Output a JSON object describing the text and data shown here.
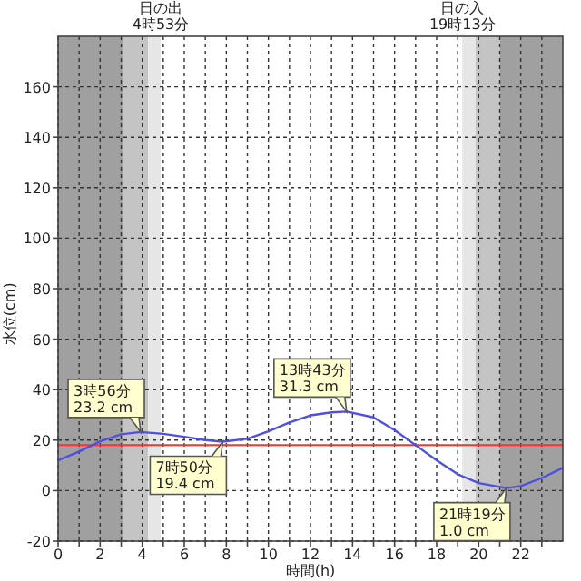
{
  "chart_data": {
    "type": "line",
    "xlabel": "時間(h)",
    "ylabel": "水位(cm)",
    "x": [
      0,
      1,
      2,
      3,
      3.93,
      5,
      6,
      7,
      7.83,
      9,
      10,
      11,
      12,
      13,
      13.72,
      15,
      16,
      17,
      18,
      19,
      20,
      21.32,
      22,
      23,
      24
    ],
    "series": [
      {
        "color": "#5050e0",
        "values": [
          12,
          15.5,
          19.5,
          22.3,
          23.2,
          22.5,
          21.3,
          20,
          19.4,
          20.5,
          23.5,
          27,
          29.8,
          31,
          31.3,
          29,
          24,
          18,
          12,
          6.5,
          3,
          1.0,
          1.8,
          5,
          9
        ]
      }
    ],
    "xlim": [
      0,
      24
    ],
    "ylim": [
      -20,
      180
    ],
    "xticks": [
      0,
      {
        "value": 1,
        "label": null
      },
      2,
      {
        "value": 3,
        "label": null
      },
      4,
      {
        "value": 5,
        "label": null
      },
      6,
      {
        "value": 7,
        "label": null
      },
      8,
      {
        "value": 9,
        "label": null
      },
      10,
      {
        "value": 11,
        "label": null
      },
      12,
      {
        "value": 13,
        "label": null
      },
      14,
      {
        "value": 15,
        "label": null
      },
      16,
      {
        "value": 17,
        "label": null
      },
      18,
      {
        "value": 19,
        "label": null
      },
      20,
      {
        "value": 21,
        "label": null
      },
      22,
      {
        "value": 23,
        "label": null
      }
    ],
    "yticks": [
      -20,
      0,
      20,
      40,
      60,
      80,
      100,
      120,
      140,
      160
    ],
    "grid": true,
    "marker": "none",
    "line_style": "solid",
    "ref_lines": [
      {
        "axis": "y",
        "value": 18,
        "color": "#ff3030"
      }
    ],
    "bands": [
      {
        "axis": "x",
        "from": 0,
        "to": 3.07,
        "color": "#a0a0a0"
      },
      {
        "axis": "x",
        "from": 3.07,
        "to": 4.28,
        "color": "#c4c4c4"
      },
      {
        "axis": "x",
        "from": 4.28,
        "to": 4.88,
        "color": "#e6e6e6"
      },
      {
        "axis": "x",
        "from": 19.22,
        "to": 19.85,
        "color": "#e6e6e6"
      },
      {
        "axis": "x",
        "from": 19.85,
        "to": 21.0,
        "color": "#c4c4c4"
      },
      {
        "axis": "x",
        "from": 21.0,
        "to": 24,
        "color": "#a0a0a0"
      }
    ],
    "annotations": [
      "日の出\n4時53分",
      "日の入\n19時13分",
      {
        "text": "3時56分\n23.2 cm",
        "x": 3.93,
        "y": 23.2
      },
      {
        "text": "7時50分\n19.4 cm",
        "x": 7.83,
        "y": 19.4
      },
      {
        "text": "13時43分\n31.3 cm",
        "x": 13.72,
        "y": 31.3
      },
      {
        "text": "21時19分\n1.0 cm",
        "x": 21.32,
        "y": 1.0
      }
    ]
  }
}
